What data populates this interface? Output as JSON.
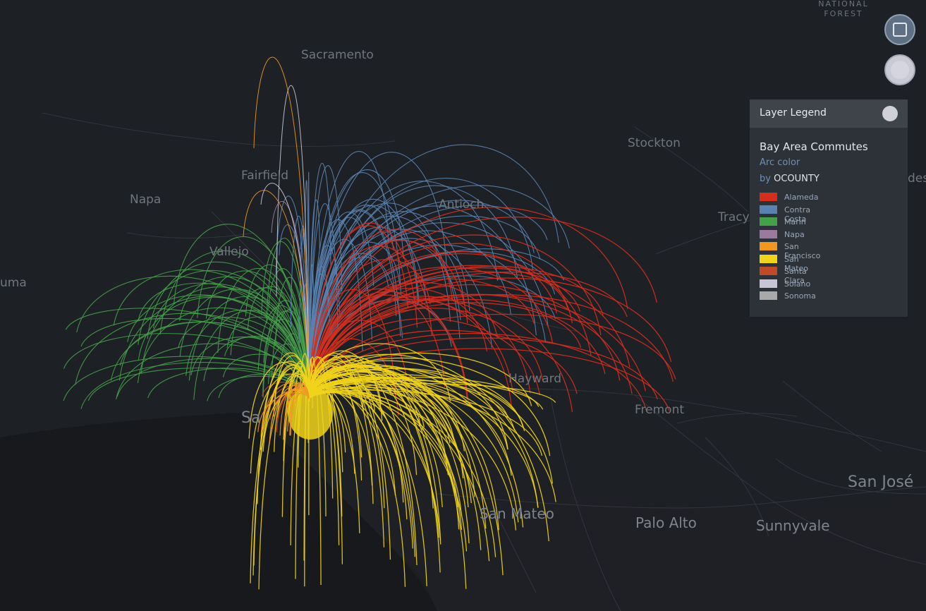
{
  "map": {
    "labels": {
      "forest_line1": "NATIONAL",
      "forest_line2": "FOREST",
      "sacramento": "Sacramento",
      "stockton": "Stockton",
      "fairfield": "Fairfield",
      "napa": "Napa",
      "antioch": "Antioch",
      "vallejo": "Vallejo",
      "tracy": "Tracy",
      "uma": "uma",
      "hayward": "Hayward",
      "fremont": "Fremont",
      "sf_partial": "Sa",
      "san_jose": "San José",
      "san_mateo": "San Mateo",
      "palo_alto": "Palo Alto",
      "sunnyvale": "Sunnyvale",
      "des_partial": "des"
    },
    "arc_colors": {
      "Alameda": "#d42e1e",
      "Contra Costa": "#5a82b0",
      "Marin": "#45a04a",
      "Napa": "#9b7aa0",
      "San Francisco": "#ef9722",
      "San Mateo": "#f0d31c",
      "Santa Clara": "#c04a27",
      "Solano": "#c8c6d6",
      "Sonoma": "#a9a9a9"
    }
  },
  "controls": {
    "pause_icon": "pause-icon",
    "settings_icon": "settings-icon"
  },
  "legend": {
    "title": "Layer Legend",
    "layer_name": "Bay Area Commutes",
    "arc_color_label": "Arc color",
    "by_prefix": "by",
    "by_field": "OCOUNTY",
    "items": [
      {
        "label": "Alameda",
        "color": "#d42e1e"
      },
      {
        "label": "Contra Costa",
        "color": "#5a82b0"
      },
      {
        "label": "Marin",
        "color": "#45a04a"
      },
      {
        "label": "Napa",
        "color": "#9b7aa0"
      },
      {
        "label": "San Francisco",
        "color": "#ef9722"
      },
      {
        "label": "San Mateo",
        "color": "#f0d31c"
      },
      {
        "label": "Santa Clara",
        "color": "#c04a27"
      },
      {
        "label": "Solano",
        "color": "#c8c6d6"
      },
      {
        "label": "Sonoma",
        "color": "#a9a9a9"
      }
    ]
  }
}
